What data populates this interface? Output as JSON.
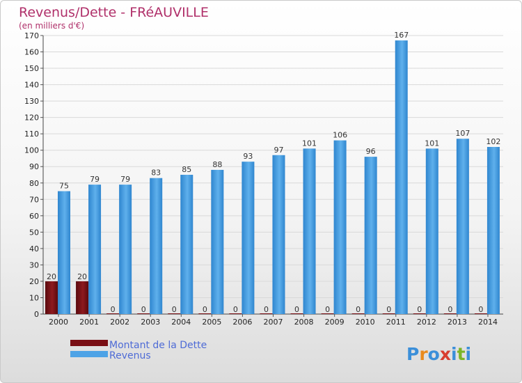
{
  "chart_data": {
    "type": "bar",
    "title": "Revenus/Dette - FRéAUVILLE",
    "subtitle": "(en milliers d'€)",
    "categories": [
      "2000",
      "2001",
      "2002",
      "2003",
      "2004",
      "2005",
      "2006",
      "2007",
      "2008",
      "2009",
      "2010",
      "2011",
      "2012",
      "2013",
      "2014"
    ],
    "series": [
      {
        "name": "Montant de la Dette",
        "color": "#7a0f14",
        "values": [
          20,
          20,
          0,
          0,
          0,
          0,
          0,
          0,
          0,
          0,
          0,
          0,
          0,
          0,
          0
        ]
      },
      {
        "name": "Revenus",
        "color": "#4ea3e6",
        "values": [
          75,
          79,
          79,
          83,
          85,
          88,
          93,
          97,
          101,
          106,
          96,
          167,
          101,
          107,
          102
        ]
      }
    ],
    "ylim": [
      0,
      170
    ],
    "yticks": [
      0,
      10,
      20,
      30,
      40,
      50,
      60,
      70,
      80,
      90,
      100,
      110,
      120,
      130,
      140,
      150,
      160,
      170
    ],
    "grid": true,
    "legend": "bottom-left"
  },
  "brand": {
    "letters": [
      "P",
      "r",
      "o",
      "x",
      "i",
      "t",
      "i"
    ],
    "colors": [
      "#3b8fd9",
      "#e98a1d",
      "#3b8fd9",
      "#d83c2e",
      "#3b8fd9",
      "#7bb528",
      "#3b8fd9"
    ]
  }
}
